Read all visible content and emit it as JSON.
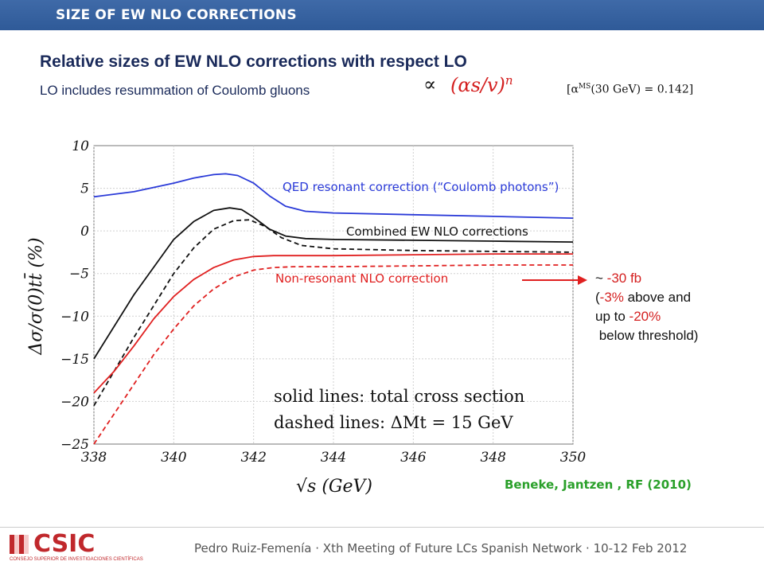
{
  "header": {
    "title": "SIZE OF EW NLO CORRECTIONS"
  },
  "slide": {
    "title": "Relative sizes of EW NLO corrections with respect LO",
    "subtitle": "LO includes resummation of Coulomb gluons",
    "propto": "∝",
    "scaling_base": "(αs/v)",
    "scaling_exp": "n",
    "alpha_note_pre": "[α",
    "alpha_note_sup": "MS",
    "alpha_note_post": "(30 GeV) = 0.142]",
    "note_line1_pre": "~ ",
    "note_line1_val": "-30 fb",
    "note_line2_pre": "(",
    "note_line2_val": "-3%",
    "note_line2_post": " above and",
    "note_line3_pre": "up to ",
    "note_line3_val": "-20%",
    "note_line4": " below threshold)",
    "reference": "Beneke, Jantzen , RF (2010)"
  },
  "footer": {
    "logo_text": "CSIC",
    "logo_sub": "CONSEJO SUPERIOR DE INVESTIGACIONES CIENTÍFICAS",
    "text": "Pedro Ruiz-Femenía · Xth Meeting of Future LCs Spanish Network · 10-12 Feb 2012"
  },
  "colors": {
    "header": "#2f5a98",
    "blue": "#2a3ad8",
    "red": "#e02020",
    "black": "#111111",
    "green": "#2aa02a"
  },
  "chart_data": {
    "type": "line",
    "xlabel": "√s (GeV)",
    "ylabel": "Δσ/σ(0)tt̄ (%)",
    "xlim": [
      338,
      350
    ],
    "ylim": [
      -25,
      10
    ],
    "xticks": [
      338,
      340,
      342,
      344,
      346,
      348,
      350
    ],
    "yticks": [
      10,
      5,
      0,
      -5,
      -10,
      -15,
      -20,
      -25
    ],
    "xtick_labels": [
      "338",
      "340",
      "342",
      "344",
      "346",
      "348",
      "350"
    ],
    "ytick_labels": [
      "10",
      "5",
      "0",
      "−5",
      "−10",
      "−15",
      "−20",
      "−25"
    ],
    "annotation": {
      "line1": "solid lines: total cross section",
      "line2": "dashed lines: ΔMt = 15 GeV"
    },
    "series": [
      {
        "name": "QED resonant correction (“Coulomb photons”)",
        "color": "#2a3ad8",
        "dash": false,
        "x": [
          338,
          339,
          340,
          340.5,
          341,
          341.3,
          341.6,
          342,
          342.4,
          342.8,
          343.3,
          344,
          346,
          348,
          350
        ],
        "y": [
          4,
          4.6,
          5.6,
          6.2,
          6.6,
          6.7,
          6.5,
          5.6,
          4.1,
          2.9,
          2.3,
          2.1,
          1.9,
          1.7,
          1.5
        ]
      },
      {
        "name": "Combined EW NLO corrections",
        "color": "#111111",
        "dash": false,
        "x": [
          338,
          339,
          340,
          340.5,
          341,
          341.4,
          341.7,
          342,
          342.4,
          342.8,
          343.3,
          344,
          346,
          348,
          350
        ],
        "y": [
          -15,
          -7.5,
          -1,
          1.1,
          2.4,
          2.7,
          2.5,
          1.6,
          0.2,
          -0.6,
          -0.9,
          -1,
          -1.1,
          -1.2,
          -1.3
        ]
      },
      {
        "name": "",
        "color": "#111111",
        "dash": true,
        "x": [
          338,
          339,
          340,
          340.5,
          341,
          341.5,
          341.9,
          342.3,
          342.7,
          343.2,
          344,
          346,
          348,
          350
        ],
        "y": [
          -20.5,
          -12.5,
          -5,
          -2,
          0.2,
          1.2,
          1.3,
          0.5,
          -0.8,
          -1.7,
          -2.1,
          -2.3,
          -2.4,
          -2.5
        ]
      },
      {
        "name": "Non-resonant NLO correction",
        "color": "#e02020",
        "dash": false,
        "x": [
          338,
          338.5,
          339,
          339.5,
          340,
          340.5,
          341,
          341.5,
          342,
          342.5,
          343,
          344,
          346,
          348,
          350
        ],
        "y": [
          -19,
          -16.5,
          -13.5,
          -10.3,
          -7.7,
          -5.7,
          -4.3,
          -3.4,
          -3,
          -2.9,
          -2.9,
          -2.9,
          -2.8,
          -2.7,
          -2.7
        ]
      },
      {
        "name": "",
        "color": "#e02020",
        "dash": true,
        "x": [
          338,
          338.5,
          339,
          339.5,
          340,
          340.5,
          341,
          341.5,
          342,
          342.5,
          343,
          344,
          346,
          348,
          350
        ],
        "y": [
          -25,
          -21.5,
          -18,
          -14.5,
          -11.5,
          -8.8,
          -6.8,
          -5.4,
          -4.6,
          -4.3,
          -4.2,
          -4.2,
          -4.1,
          -4,
          -4
        ]
      }
    ]
  }
}
